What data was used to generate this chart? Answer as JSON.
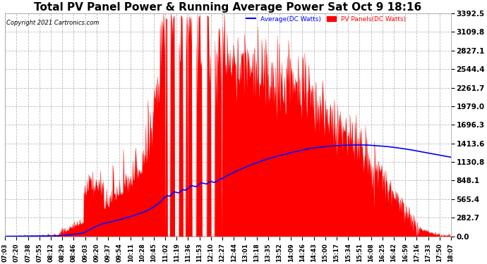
{
  "title": "Total PV Panel Power & Running Average Power Sat Oct 9 18:16",
  "copyright": "Copyright 2021 Cartronics.com",
  "legend_avg": "Average(DC Watts)",
  "legend_pv": "PV Panels(DC Watts)",
  "avg_color": "blue",
  "pv_color": "red",
  "bg_color": "#ffffff",
  "plot_bg_color": "#ffffff",
  "ylim": [
    0,
    3392.5
  ],
  "yticks": [
    0.0,
    282.7,
    565.4,
    848.1,
    1130.8,
    1413.6,
    1696.3,
    1979.0,
    2261.7,
    2544.4,
    2827.1,
    3109.8,
    3392.5
  ],
  "grid_color": "#bbbbbb",
  "title_fontsize": 11,
  "xtick_fontsize": 6,
  "ytick_fontsize": 7.5,
  "x_labels": [
    "07:03",
    "07:20",
    "07:38",
    "07:55",
    "08:12",
    "08:29",
    "08:46",
    "09:03",
    "09:20",
    "09:37",
    "09:54",
    "10:11",
    "10:28",
    "10:45",
    "11:02",
    "11:19",
    "11:36",
    "11:53",
    "12:10",
    "12:27",
    "12:44",
    "13:01",
    "13:18",
    "13:35",
    "13:52",
    "14:09",
    "14:26",
    "14:43",
    "15:00",
    "15:17",
    "15:34",
    "15:51",
    "16:08",
    "16:25",
    "16:42",
    "16:59",
    "17:16",
    "17:33",
    "17:50",
    "18:07"
  ]
}
